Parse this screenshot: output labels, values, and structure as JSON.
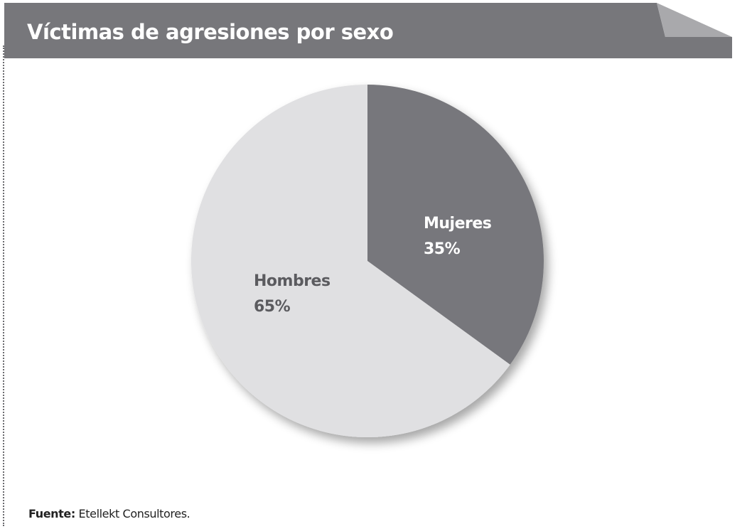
{
  "colors": {
    "banner": "#77777b",
    "banner_fold": "#a9a9ac",
    "men": "#e0e0e2",
    "women": "#77777b",
    "men_text": "#5b5b5f",
    "women_text": "#ffffff"
  },
  "source": {
    "label": "Fuente:",
    "text": " Etellekt Consultores."
  },
  "chart_data": {
    "type": "pie",
    "title": "Víctimas de agresiones por sexo",
    "slices": [
      {
        "name": "Mujeres",
        "value": 35,
        "label": "35%"
      },
      {
        "name": "Hombres",
        "value": 65,
        "label": "65%"
      }
    ]
  }
}
